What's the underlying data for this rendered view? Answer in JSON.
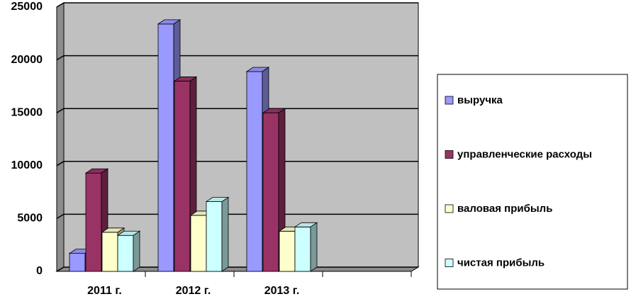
{
  "chart_data": {
    "type": "bar3d",
    "categories": [
      "2011 г.",
      "2012 г.",
      "2013 г.",
      null
    ],
    "series": [
      {
        "name": "выручка",
        "color": "#9999ff",
        "values": [
          1700,
          23400,
          18900,
          null
        ]
      },
      {
        "name": "управленческие расходы",
        "color": "#993366",
        "values": [
          9300,
          18000,
          15000,
          null
        ]
      },
      {
        "name": "валовая прибыль",
        "color": "#ffffcc",
        "values": [
          3700,
          5300,
          3800,
          null
        ]
      },
      {
        "name": "чистая прибыль",
        "color": "#ccffff",
        "values": [
          3400,
          6600,
          4200,
          null
        ]
      }
    ],
    "ylim": [
      0,
      25000
    ],
    "yticks": [
      0,
      5000,
      10000,
      15000,
      20000,
      25000
    ],
    "grid": true,
    "legend": "right"
  }
}
